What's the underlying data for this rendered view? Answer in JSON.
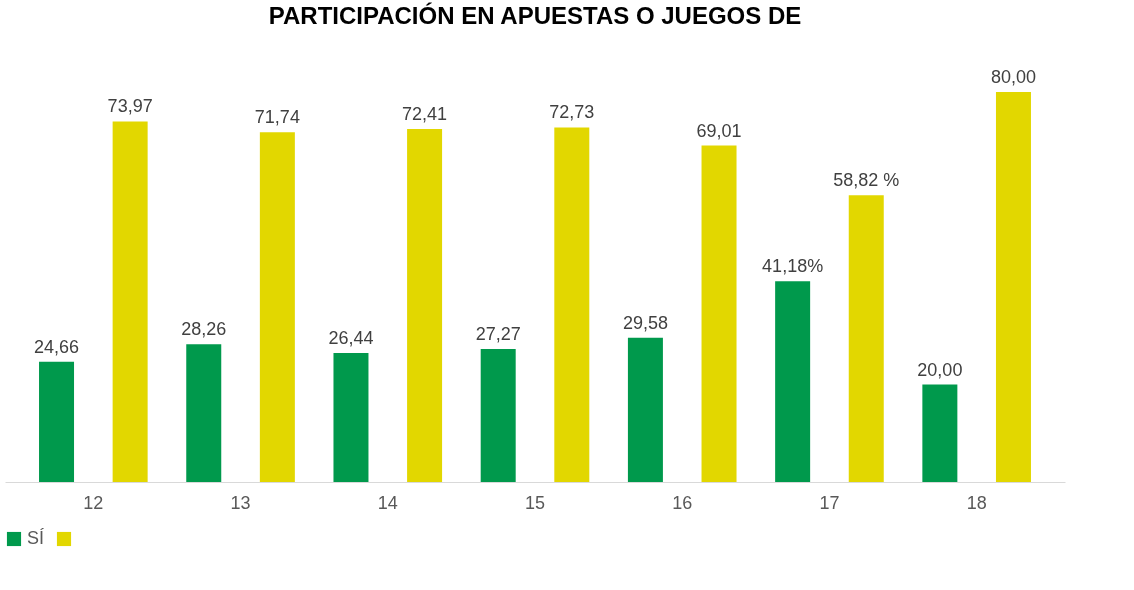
{
  "chart_data": {
    "type": "bar",
    "title": "PARTICIPACIÓN EN APUESTAS O JUEGOS DE",
    "categories": [
      "12",
      "13",
      "14",
      "15",
      "16",
      "17",
      "18"
    ],
    "series": [
      {
        "name": "SÍ",
        "color": "#00994c",
        "values": [
          24.66,
          28.26,
          26.44,
          27.27,
          29.58,
          41.18,
          20.0
        ],
        "value_labels": [
          "24,66",
          "28,26",
          "26,44",
          "27,27",
          "29,58",
          "41,18%",
          "20,00"
        ]
      },
      {
        "color": "#e2d700",
        "values": [
          73.97,
          71.74,
          72.41,
          72.73,
          69.01,
          58.82,
          80.0
        ],
        "value_labels": [
          "73,97",
          "71,74",
          "72,41",
          "72,73",
          "69,01",
          "58,82 %",
          "80,00"
        ]
      }
    ],
    "legend": "bottom",
    "grid": false
  }
}
